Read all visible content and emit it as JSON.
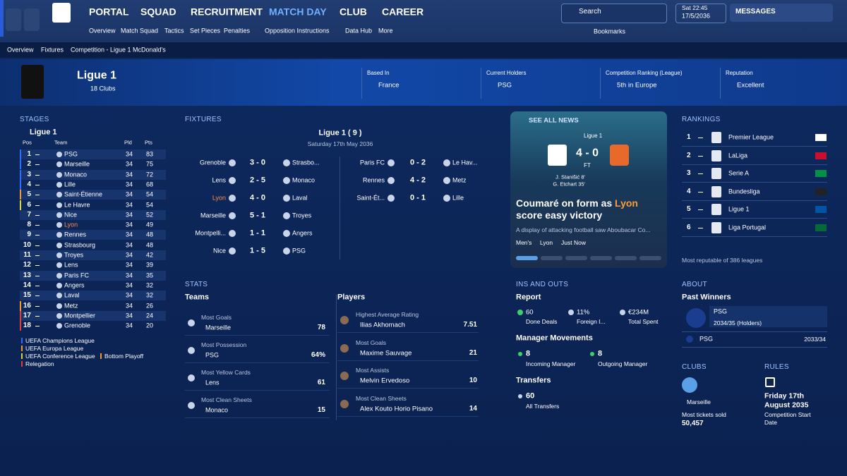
{
  "nav": {
    "tabs": [
      "PORTAL",
      "SQUAD",
      "RECRUITMENT",
      "MATCH DAY",
      "CLUB",
      "CAREER"
    ],
    "subtabs": [
      "Overview",
      "Match Squad",
      "Tactics",
      "Set Pieces",
      "Penalties",
      "Opposition Instructions",
      "Data Hub",
      "More"
    ],
    "search": "Search",
    "bookmarks": "Bookmarks",
    "day": "Sat 22:45",
    "date": "17/5/2036",
    "messages": "MESSAGES"
  },
  "breadcrumb": [
    "Overview",
    "Fixtures",
    "Competition - Ligue 1 McDonald's"
  ],
  "competition": {
    "name": "Ligue 1",
    "clubs": "18 Clubs",
    "facts": [
      {
        "label": "Based In",
        "value": "France"
      },
      {
        "label": "Current Holders",
        "value": "PSG"
      },
      {
        "label": "Competition Ranking (League)",
        "value": "5th in Europe"
      },
      {
        "label": "Reputation",
        "value": "Excellent"
      }
    ]
  },
  "stages": {
    "heading": "STAGES",
    "stage": "Ligue 1",
    "columns": [
      "Pos",
      "Team",
      "Pld",
      "Pts"
    ],
    "rows": [
      [
        1,
        "PSG",
        34,
        83
      ],
      [
        2,
        "Marseille",
        34,
        75
      ],
      [
        3,
        "Monaco",
        34,
        72
      ],
      [
        4,
        "Lille",
        34,
        68
      ],
      [
        5,
        "Saint-Étienne",
        34,
        54
      ],
      [
        6,
        "Le Havre",
        34,
        54
      ],
      [
        7,
        "Nice",
        34,
        52
      ],
      [
        8,
        "Lyon",
        34,
        49
      ],
      [
        9,
        "Rennes",
        34,
        48
      ],
      [
        10,
        "Strasbourg",
        34,
        48
      ],
      [
        11,
        "Troyes",
        34,
        42
      ],
      [
        12,
        "Lens",
        34,
        39
      ],
      [
        13,
        "Paris FC",
        34,
        35
      ],
      [
        14,
        "Angers",
        34,
        32
      ],
      [
        15,
        "Laval",
        34,
        32
      ],
      [
        16,
        "Metz",
        34,
        26
      ],
      [
        17,
        "Montpellier",
        34,
        24
      ],
      [
        18,
        "Grenoble",
        34,
        20
      ]
    ],
    "legend": [
      "UEFA Champions League",
      "UEFA Europa League",
      "UEFA Conference League",
      "Bottom Playoff",
      "Relegation"
    ]
  },
  "fixtures": {
    "heading": "FIXTURES",
    "round": "Ligue 1 ( 9 )",
    "date": "Saturday 17th May 2036",
    "matches": [
      [
        "Grenoble",
        "3 - 0",
        "Strasbo..."
      ],
      [
        "Lens",
        "2 - 5",
        "Monaco"
      ],
      [
        "Lyon",
        "4 - 0",
        "Laval"
      ],
      [
        "Marseille",
        "5 - 1",
        "Troyes"
      ],
      [
        "Montpelli...",
        "1 - 1",
        "Angers"
      ],
      [
        "Nice",
        "1 - 5",
        "PSG"
      ],
      [
        "Paris FC",
        "0 - 2",
        "Le Hav..."
      ],
      [
        "Rennes",
        "4 - 2",
        "Metz"
      ],
      [
        "Saint-Ét...",
        "0 - 1",
        "Lille"
      ]
    ]
  },
  "news": {
    "link": "SEE ALL NEWS",
    "competition": "Ligue 1",
    "score": "4 - 0",
    "status": "FT",
    "scorers": [
      "J. Stanišić 8'",
      "G. Etchart 35'"
    ],
    "headline": [
      "Coumaré on form as ",
      "Lyon",
      " score easy victory"
    ],
    "summary": "A display of attacking football saw Aboubacar Co...",
    "tags": [
      "Men's",
      "Lyon",
      "Just Now"
    ]
  },
  "rankings": {
    "heading": "RANKINGS",
    "rows": [
      [
        1,
        "Premier League"
      ],
      [
        2,
        "LaLiga"
      ],
      [
        3,
        "Serie A"
      ],
      [
        4,
        "Bundesliga"
      ],
      [
        5,
        "Ligue 1"
      ],
      [
        6,
        "Liga Portugal"
      ]
    ],
    "note": "Most reputable of 386 leagues"
  },
  "stats": {
    "heading": "STATS",
    "teams_heading": "Teams",
    "players_heading": "Players",
    "teams": [
      [
        "Most Goals",
        "Marseille",
        "78"
      ],
      [
        "Most Possession",
        "PSG",
        "64%"
      ],
      [
        "Most Yellow Cards",
        "Lens",
        "61"
      ],
      [
        "Most Clean Sheets",
        "Monaco",
        "15"
      ]
    ],
    "players": [
      [
        "Highest Average Rating",
        "Ilias Akhomach",
        "7.51"
      ],
      [
        "Most Goals",
        "Maxime Sauvage",
        "21"
      ],
      [
        "Most Assists",
        "Melvin Ervedoso",
        "10"
      ],
      [
        "Most Clean Sheets",
        "Alex Kouto Horio Pisano",
        "14"
      ]
    ]
  },
  "ins_outs": {
    "heading": "INS AND OUTS",
    "report": "Report",
    "report_items": [
      [
        "60",
        "Done Deals"
      ],
      [
        "11%",
        "Foreign I..."
      ],
      [
        "€234M",
        "Total Spent"
      ]
    ],
    "managers": "Manager Movements",
    "manager_items": [
      [
        "8",
        "Incoming Manager"
      ],
      [
        "8",
        "Outgoing Manager"
      ]
    ],
    "transfers": "Transfers",
    "transfer_items": [
      [
        "60",
        "All Transfers"
      ]
    ]
  },
  "about": {
    "heading": "ABOUT",
    "past_winners": "Past Winners",
    "winners": [
      [
        "PSG",
        "2034/35 (Holders)"
      ],
      [
        "PSG",
        "2033/34"
      ]
    ],
    "clubs_heading": "CLUBS",
    "club": "Marseille",
    "tickets_label": "Most tickets sold",
    "tickets": "50,457",
    "rules_heading": "RULES",
    "start": [
      "Friday 17th",
      "August 2035"
    ],
    "start_label": [
      "Competition Start",
      "Date"
    ]
  }
}
